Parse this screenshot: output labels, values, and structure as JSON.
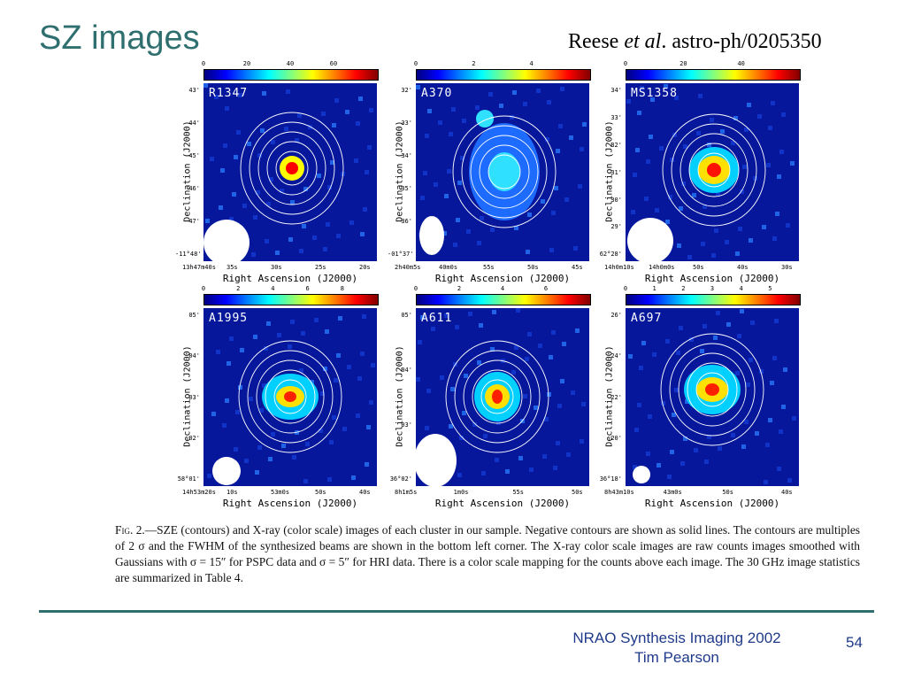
{
  "slide": {
    "title": "SZ images",
    "reference": {
      "author": "Reese",
      "etal": "et al",
      "id": ". astro-ph/0205350"
    }
  },
  "panels": [
    {
      "id": "p1",
      "label": "R1347",
      "colorbar_ticks": [
        "0",
        "20",
        "40",
        "60"
      ],
      "xticks": [
        "13h47m40s",
        "35s",
        "30s",
        "25s",
        "20s"
      ],
      "yticks": [
        "43'",
        "44'",
        "45'",
        "46'",
        "47'",
        "-11°48'"
      ],
      "xlabel": "Right Ascension (J2000)",
      "ylabel": "Declination (J2000)"
    },
    {
      "id": "p2",
      "label": "A370",
      "colorbar_ticks": [
        "0",
        "2",
        "4"
      ],
      "xticks": [
        "2h40m5s",
        "40m0s",
        "55s",
        "50s",
        "45s"
      ],
      "yticks": [
        "32'",
        "33'",
        "34'",
        "35'",
        "36'",
        "-01°37'"
      ],
      "xlabel": "Right Ascension (J2000)",
      "ylabel": "Declination (J2000)"
    },
    {
      "id": "p3",
      "label": "MS1358",
      "colorbar_ticks": [
        "0",
        "20",
        "40"
      ],
      "xticks": [
        "14h0m10s",
        "14h0m0s",
        "50s",
        "40s",
        "30s"
      ],
      "yticks": [
        "34'",
        "33'",
        "32'",
        "31'",
        "30'",
        "29'",
        "62°28'"
      ],
      "xlabel": "Right Ascension (J2000)",
      "ylabel": "Declination (J2000)"
    },
    {
      "id": "p4",
      "label": "A1995",
      "colorbar_ticks": [
        "0",
        "2",
        "4",
        "6",
        "8"
      ],
      "xticks": [
        "14h53m20s",
        "10s",
        "53m0s",
        "50s",
        "40s"
      ],
      "yticks": [
        "05'",
        "04'",
        "03'",
        "02'",
        "58°01'"
      ],
      "xlabel": "Right Ascension (J2000)",
      "ylabel": "Declination (J2000)"
    },
    {
      "id": "p5",
      "label": "A611",
      "colorbar_ticks": [
        "0",
        "2",
        "4",
        "6"
      ],
      "xticks": [
        "8h1m5s",
        "1m0s",
        "55s",
        "50s"
      ],
      "yticks": [
        "05'",
        "04'",
        "03'",
        "36°02'"
      ],
      "xlabel": "Right Ascension (J2000)",
      "ylabel": "Declination (J2000)"
    },
    {
      "id": "p6",
      "label": "A697",
      "colorbar_ticks": [
        "0",
        "1",
        "2",
        "3",
        "4",
        "5"
      ],
      "xticks": [
        "8h43m10s",
        "43m0s",
        "50s",
        "40s"
      ],
      "yticks": [
        "26'",
        "24'",
        "22'",
        "20'",
        "36°18'"
      ],
      "xlabel": "Right Ascension (J2000)",
      "ylabel": "Declination (J2000)"
    }
  ],
  "caption": {
    "fig": "Fig. 2.",
    "text": "—SZE (contours) and X-ray (color scale) images of each cluster in our sample. Negative contours are shown as solid lines. The contours are multiples of 2 σ and the FWHM of the synthesized beams are shown in the bottom left corner. The X-ray color scale images are raw counts images smoothed with Gaussians with σ = 15″ for PSPC data and σ = 5″ for HRI data. There is a color scale mapping for the counts above each image. The 30 GHz image statistics are summarized in Table 4."
  },
  "footer": {
    "line1": "NRAO Synthesis Imaging 2002",
    "line2": "Tim Pearson",
    "page": "54"
  }
}
